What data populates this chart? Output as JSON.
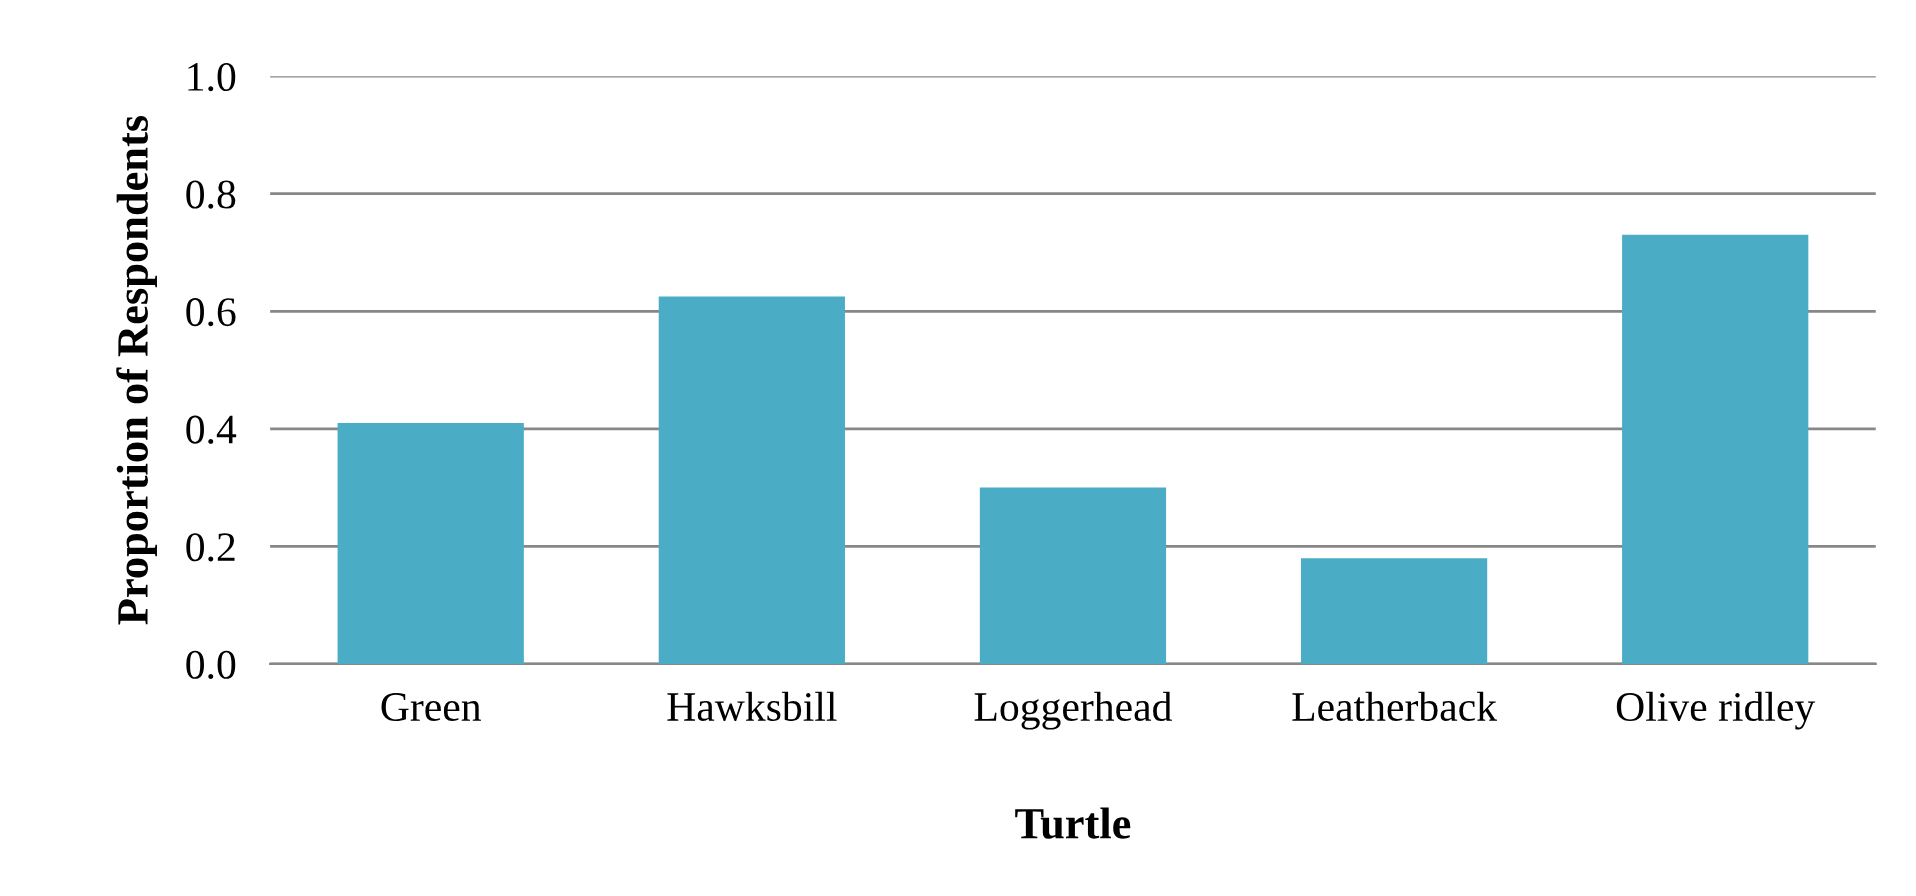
{
  "chart_data": {
    "type": "bar",
    "xlabel": "Turtle",
    "ylabel": "Proportion of Respondents",
    "categories": [
      "Green",
      "Hawksbill",
      "Loggerhead",
      "Leatherback",
      "Olive ridley"
    ],
    "values": [
      0.41,
      0.625,
      0.3,
      0.18,
      0.73
    ],
    "color": "#4bacc6",
    "ylim": [
      0,
      1
    ],
    "yticks": [
      {
        "value": 0,
        "label": "0.0"
      },
      {
        "value": 0.2,
        "label": "0.2"
      },
      {
        "value": 0.4,
        "label": "0.4"
      },
      {
        "value": 0.6,
        "label": "0.6"
      },
      {
        "value": 0.8,
        "label": "0.8"
      },
      {
        "value": 1,
        "label": "1.0"
      }
    ],
    "grid": "y",
    "legend": false
  }
}
